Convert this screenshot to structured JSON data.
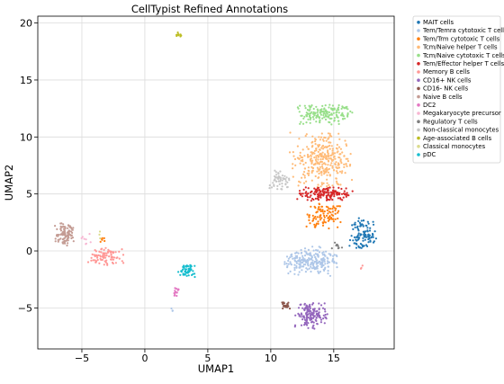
{
  "chart_data": {
    "type": "scatter",
    "title": "CellTypist Refined Annotations",
    "xlabel": "UMAP1",
    "ylabel": "UMAP2",
    "xlim": [
      -8.5,
      19.8
    ],
    "ylim": [
      -8.6,
      20.6
    ],
    "xticks": [
      -5,
      0,
      5,
      10,
      15
    ],
    "yticks": [
      -5,
      0,
      5,
      10,
      15,
      20
    ],
    "xtick_labels": [
      "−5",
      "0",
      "5",
      "10",
      "15"
    ],
    "ytick_labels": [
      "−5",
      "0",
      "5",
      "10",
      "15",
      "20"
    ],
    "grid": true,
    "legend_position": "outside-right",
    "series": [
      {
        "name": "MAIT cells",
        "color": "#1f77b4",
        "clusters": [
          {
            "cx": 17.3,
            "cy": 1.5,
            "rx": 1.1,
            "ry": 1.4,
            "n": 110
          }
        ]
      },
      {
        "name": "Tem/Temra cytotoxic T cells",
        "color": "#aec7e8",
        "clusters": [
          {
            "cx": 13.2,
            "cy": -0.9,
            "rx": 2.1,
            "ry": 1.3,
            "n": 230
          },
          {
            "cx": 2.2,
            "cy": -5.2,
            "rx": 0.15,
            "ry": 0.25,
            "n": 3
          }
        ]
      },
      {
        "name": "Tem/Trm cytotoxic T cells",
        "color": "#ff7f0e",
        "clusters": [
          {
            "cx": 14.2,
            "cy": 3.0,
            "rx": 1.5,
            "ry": 1.2,
            "n": 100
          },
          {
            "cx": -3.2,
            "cy": 1.0,
            "rx": 0.4,
            "ry": 0.4,
            "n": 6
          }
        ]
      },
      {
        "name": "Tcm/Naive helper T cells",
        "color": "#ffbb78",
        "clusters": [
          {
            "cx": 14.0,
            "cy": 8.0,
            "rx": 2.5,
            "ry": 2.4,
            "n": 320
          }
        ]
      },
      {
        "name": "Tcm/Naive cytotoxic T cells",
        "color": "#98df8a",
        "clusters": [
          {
            "cx": 14.3,
            "cy": 12.0,
            "rx": 2.6,
            "ry": 0.9,
            "n": 170
          }
        ]
      },
      {
        "name": "Tem/Effector helper T cells",
        "color": "#d62728",
        "clusters": [
          {
            "cx": 14.3,
            "cy": 5.0,
            "rx": 2.2,
            "ry": 0.6,
            "n": 150
          }
        ]
      },
      {
        "name": "Memory B cells",
        "color": "#ff9896",
        "clusters": [
          {
            "cx": -3.1,
            "cy": -0.5,
            "rx": 1.4,
            "ry": 0.8,
            "n": 90
          },
          {
            "cx": 17.2,
            "cy": -1.4,
            "rx": 0.15,
            "ry": 0.25,
            "n": 3
          }
        ]
      },
      {
        "name": "CD16+ NK cells",
        "color": "#9467bd",
        "clusters": [
          {
            "cx": 13.2,
            "cy": -5.7,
            "rx": 1.3,
            "ry": 1.2,
            "n": 150
          }
        ]
      },
      {
        "name": "CD16- NK cells",
        "color": "#8c564b",
        "clusters": [
          {
            "cx": 11.2,
            "cy": -4.8,
            "rx": 0.4,
            "ry": 0.35,
            "n": 22
          }
        ]
      },
      {
        "name": "Naive B cells",
        "color": "#c49c94",
        "clusters": [
          {
            "cx": -6.4,
            "cy": 1.5,
            "rx": 0.8,
            "ry": 1.1,
            "n": 100
          }
        ]
      },
      {
        "name": "DC2",
        "color": "#e377c2",
        "clusters": [
          {
            "cx": 2.4,
            "cy": -3.8,
            "rx": 0.3,
            "ry": 0.6,
            "n": 14
          }
        ]
      },
      {
        "name": "Megakaryocyte precursor",
        "color": "#f7b6d2",
        "clusters": [
          {
            "cx": -4.7,
            "cy": 0.9,
            "rx": 0.6,
            "ry": 0.6,
            "n": 8
          }
        ]
      },
      {
        "name": "Regulatory T cells",
        "color": "#7f7f7f",
        "clusters": [
          {
            "cx": 15.3,
            "cy": 0.3,
            "rx": 0.5,
            "ry": 0.5,
            "n": 10
          }
        ]
      },
      {
        "name": "Non-classical monocytes",
        "color": "#c7c7c7",
        "clusters": [
          {
            "cx": 10.7,
            "cy": 6.2,
            "rx": 0.8,
            "ry": 0.9,
            "n": 55
          }
        ]
      },
      {
        "name": "Age-associated B cells",
        "color": "#bcbd22",
        "clusters": [
          {
            "cx": 2.6,
            "cy": 19.0,
            "rx": 0.3,
            "ry": 0.25,
            "n": 10
          }
        ]
      },
      {
        "name": "Classical monocytes",
        "color": "#dbdb8d",
        "clusters": [
          {
            "cx": -3.6,
            "cy": 1.4,
            "rx": 0.3,
            "ry": 0.3,
            "n": 3
          }
        ]
      },
      {
        "name": "pDC",
        "color": "#17becf",
        "clusters": [
          {
            "cx": 3.3,
            "cy": -1.6,
            "rx": 0.7,
            "ry": 0.7,
            "n": 55
          }
        ]
      }
    ]
  }
}
